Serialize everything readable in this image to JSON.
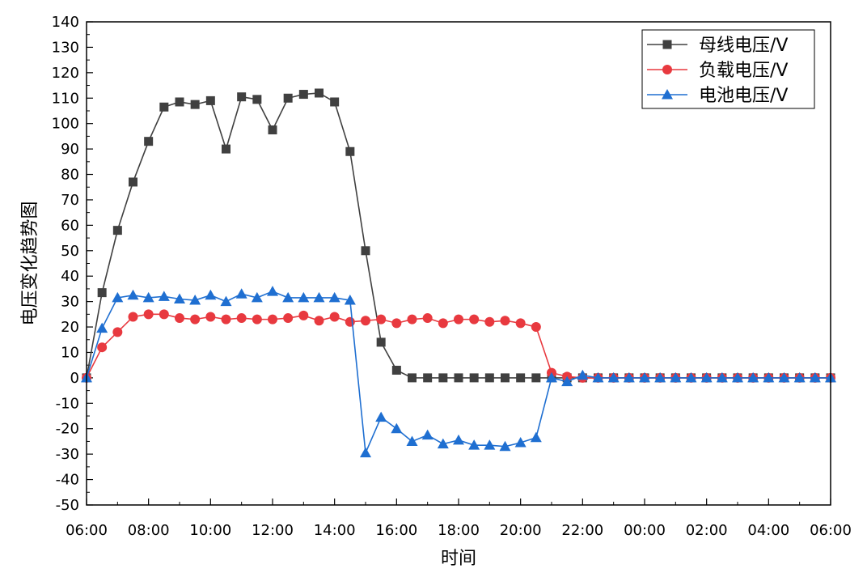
{
  "chart_data": {
    "type": "line",
    "xlabel": "时间",
    "ylabel": "电压变化趋势图",
    "ylim": [
      -50,
      140
    ],
    "y_ticks": [
      -50,
      -40,
      -30,
      -20,
      -10,
      0,
      10,
      20,
      30,
      40,
      50,
      60,
      70,
      80,
      90,
      100,
      110,
      120,
      130,
      140
    ],
    "x_tick_labels": [
      "06:00",
      "08:00",
      "10:00",
      "12:00",
      "14:00",
      "16:00",
      "18:00",
      "20:00",
      "22:00",
      "00:00",
      "02:00",
      "04:00",
      "06:00"
    ],
    "x_hours": [
      6,
      6.5,
      7,
      7.5,
      8,
      8.5,
      9,
      9.5,
      10,
      10.5,
      11,
      11.5,
      12,
      12.5,
      13,
      13.5,
      14,
      14.5,
      15,
      15.5,
      16,
      16.5,
      17,
      17.5,
      18,
      18.5,
      19,
      19.5,
      20,
      20.5,
      21,
      21.5,
      22,
      22.5,
      23,
      23.5,
      24,
      24.5,
      25,
      25.5,
      26,
      26.5,
      27,
      27.5,
      28,
      28.5,
      29,
      29.5,
      30
    ],
    "grid": false,
    "legend_position": "top-right",
    "series": [
      {
        "name": "母线电压/V",
        "color": "#404040",
        "marker": "square",
        "values": [
          0,
          33.5,
          58,
          77,
          93,
          106.5,
          108.5,
          107.5,
          109,
          90,
          110.5,
          109.5,
          97.5,
          110,
          111.5,
          112,
          108.5,
          89,
          50,
          14,
          3,
          0,
          0,
          0,
          0,
          0,
          0,
          0,
          0,
          0,
          0,
          0,
          0,
          0,
          0,
          0,
          0,
          0,
          0,
          0,
          0,
          0,
          0,
          0,
          0,
          0,
          0,
          0,
          0
        ]
      },
      {
        "name": "负载电压/V",
        "color": "#e8393f",
        "marker": "circle",
        "values": [
          0,
          12,
          18,
          24,
          25,
          25,
          23.5,
          23,
          24,
          23,
          23.5,
          23,
          23,
          23.5,
          24.5,
          22.5,
          24,
          22,
          22.5,
          23,
          21.5,
          23,
          23.5,
          21.5,
          23,
          23,
          22,
          22.5,
          21.5,
          20,
          2,
          0.5,
          0,
          0,
          0,
          0,
          0,
          0,
          0,
          0,
          0,
          0,
          0,
          0,
          0,
          0,
          0,
          0,
          0
        ]
      },
      {
        "name": "电池电压/V",
        "color": "#1f6fd1",
        "marker": "triangle",
        "values": [
          0,
          19.5,
          31.5,
          32.5,
          31.5,
          32,
          31,
          30.5,
          32.5,
          30,
          33,
          31.5,
          34,
          31.5,
          31.5,
          31.5,
          31.5,
          30.5,
          -29.5,
          -15.5,
          -20,
          -25,
          -22.5,
          -26,
          -24.5,
          -26.5,
          -26.5,
          -27,
          -25.5,
          -23.5,
          0,
          -1.5,
          1,
          0,
          0,
          0,
          0,
          0,
          0,
          0,
          0,
          0,
          0,
          0,
          0,
          0,
          0,
          0,
          0
        ]
      }
    ]
  }
}
